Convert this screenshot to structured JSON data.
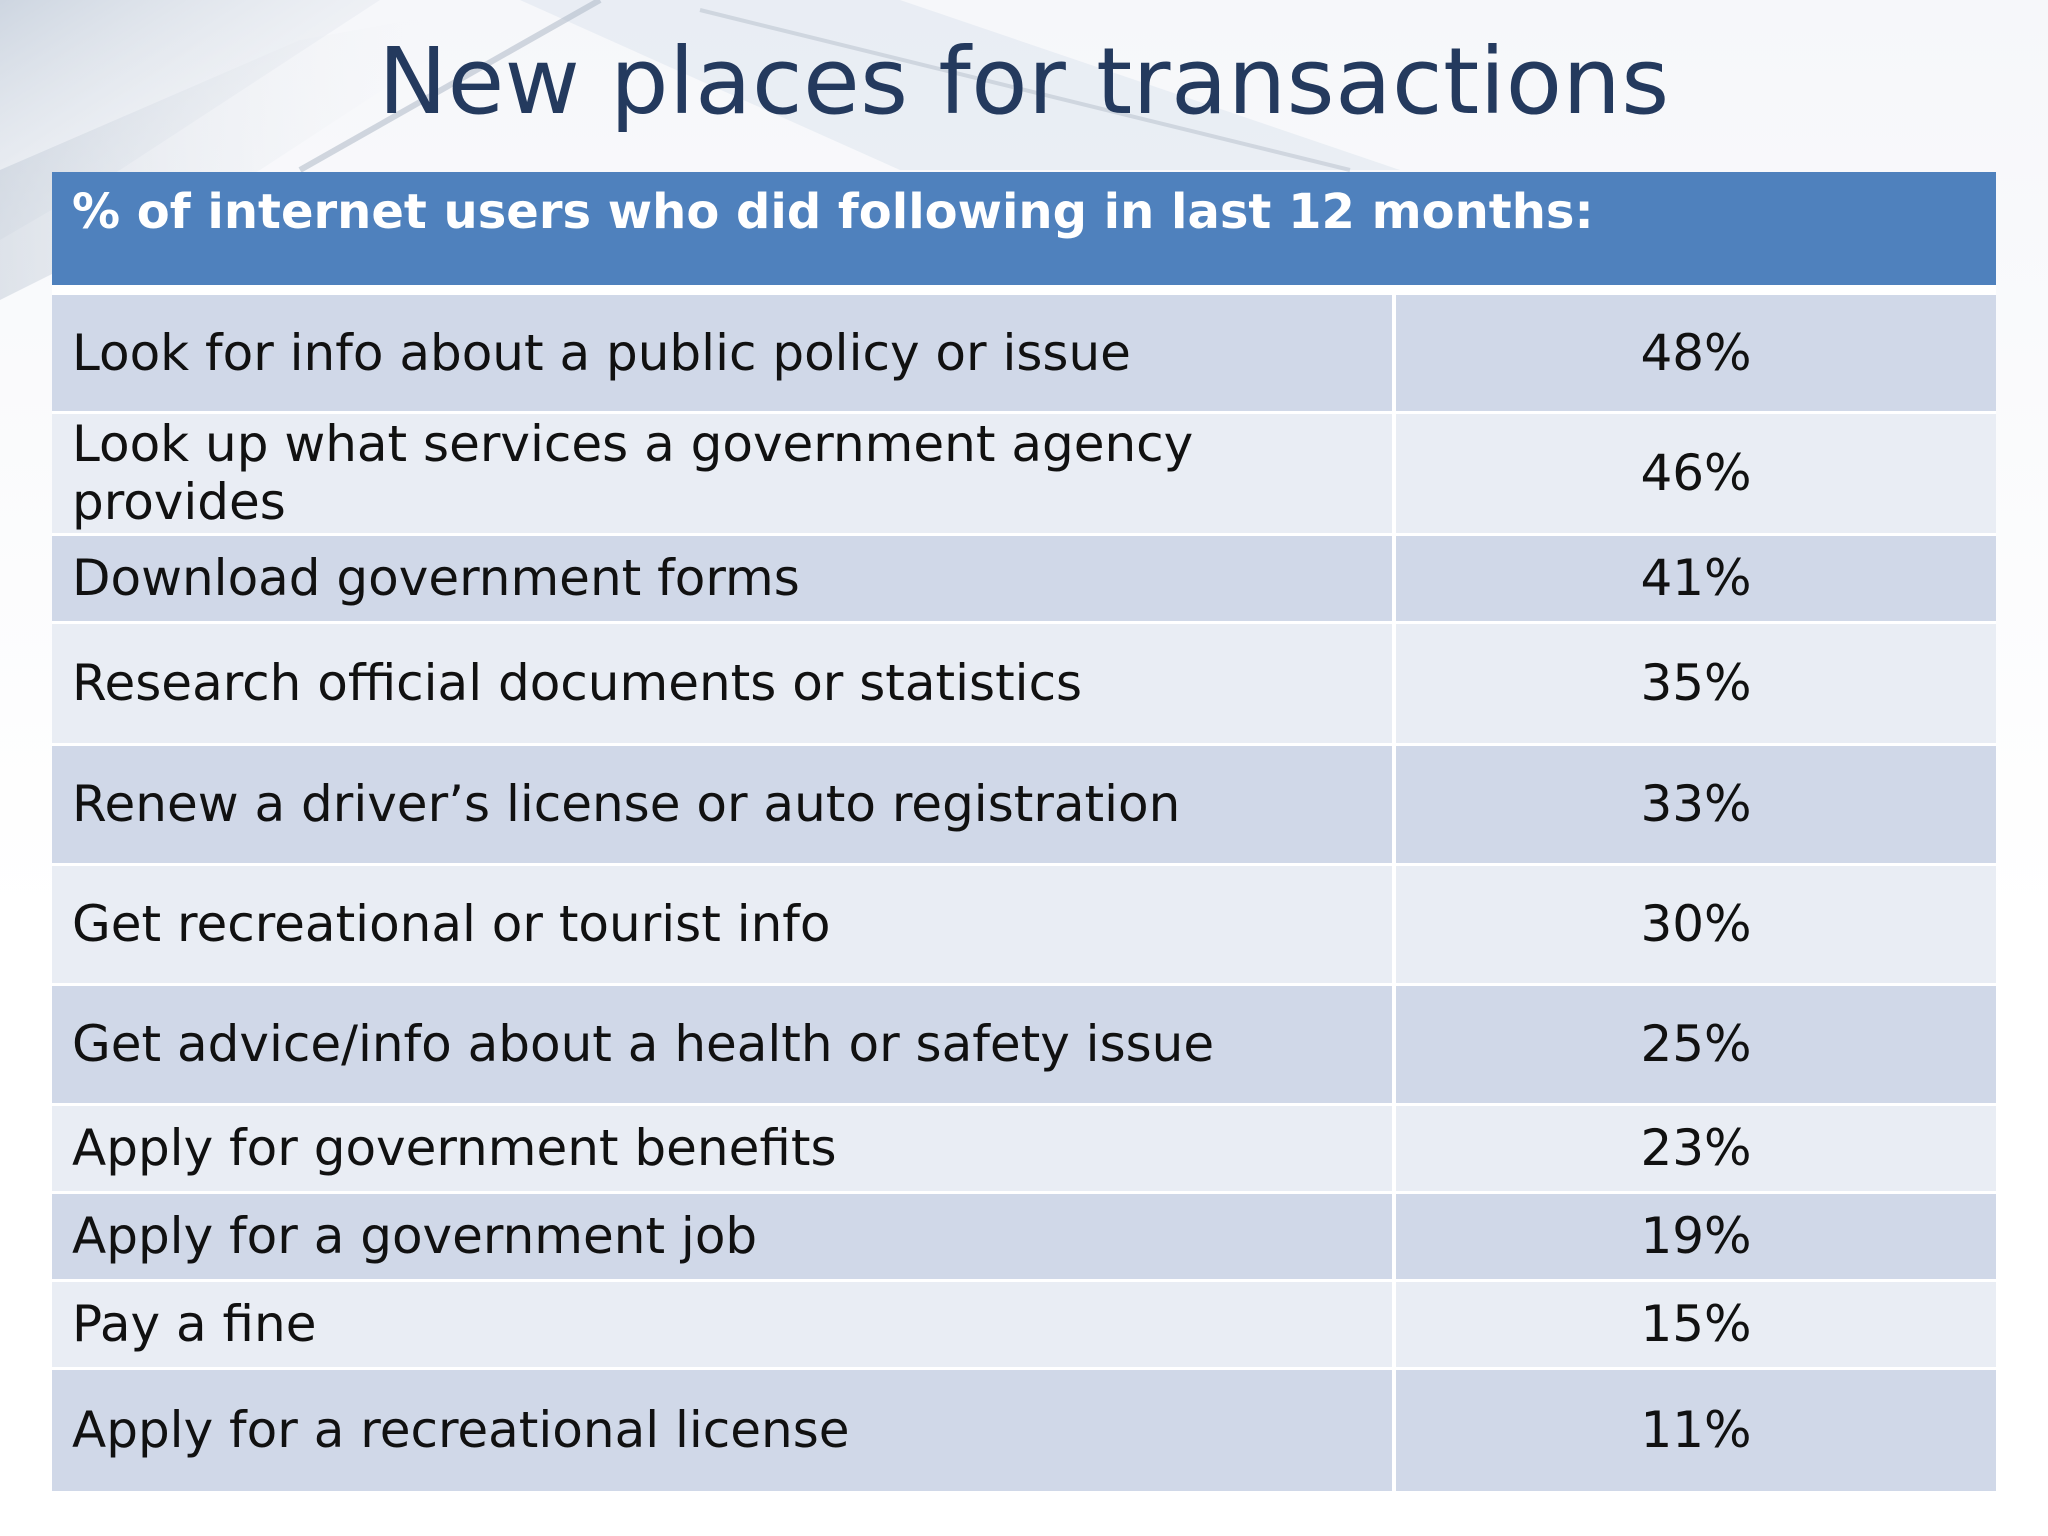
{
  "title": "New places for transactions",
  "table": {
    "header": "% of internet users who did following in last 12 months:",
    "rows": [
      {
        "activity": "Look for info about a public policy or issue",
        "value": "48%"
      },
      {
        "activity": "Look up what services a government agency provides",
        "value": "46%"
      },
      {
        "activity": "Download government forms",
        "value": "41%"
      },
      {
        "activity": "Research official documents or statistics",
        "value": "35%"
      },
      {
        "activity": "Renew a driver’s license or auto registration",
        "value": "33%"
      },
      {
        "activity": "Get recreational or tourist info",
        "value": "30%"
      },
      {
        "activity": "Get advice/info about a health or safety issue",
        "value": "25%"
      },
      {
        "activity": "Apply for government benefits",
        "value": "23%"
      },
      {
        "activity": "Apply for a government job",
        "value": "19%"
      },
      {
        "activity": "Pay a fine",
        "value": "15%"
      },
      {
        "activity": "Apply for a recreational license",
        "value": "11%"
      }
    ]
  },
  "colors": {
    "title": "#243a5e",
    "header_bg": "#4f81bd",
    "row_odd": "#d0d8e8",
    "row_even": "#e9edf4"
  }
}
